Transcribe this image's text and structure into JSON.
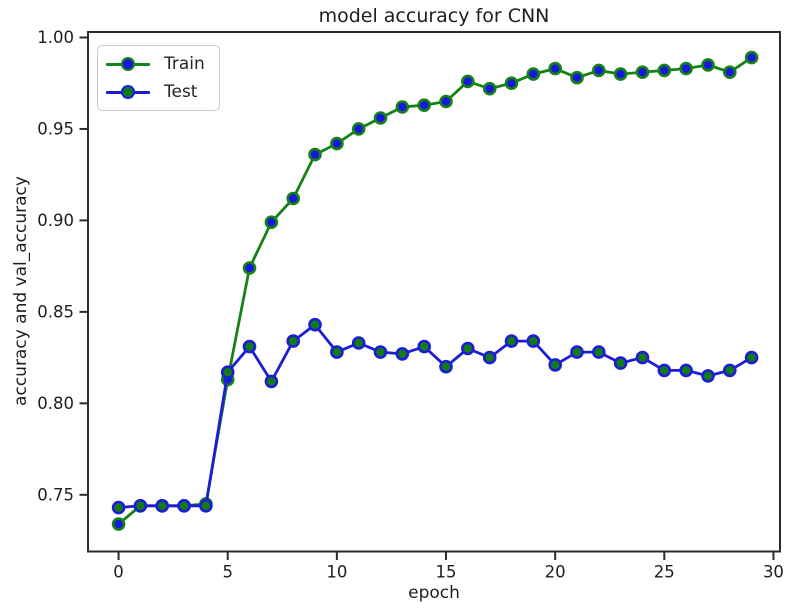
{
  "chart_data": {
    "type": "line",
    "title": "model accuracy for CNN",
    "xlabel": "epoch",
    "ylabel": "accuracy and val_accuracy",
    "x": [
      0,
      1,
      2,
      3,
      4,
      5,
      6,
      7,
      8,
      9,
      10,
      11,
      12,
      13,
      14,
      15,
      16,
      17,
      18,
      19,
      20,
      21,
      22,
      23,
      24,
      25,
      26,
      27,
      28,
      29
    ],
    "series": [
      {
        "name": "Train",
        "line_color": "#168216",
        "marker_fill": "#1717e0",
        "marker_edge": "#168216",
        "values": [
          0.734,
          0.744,
          0.744,
          0.744,
          0.745,
          0.813,
          0.874,
          0.899,
          0.912,
          0.936,
          0.942,
          0.95,
          0.956,
          0.962,
          0.963,
          0.965,
          0.976,
          0.972,
          0.975,
          0.98,
          0.983,
          0.978,
          0.982,
          0.98,
          0.981,
          0.982,
          0.983,
          0.985,
          0.981,
          0.989
        ]
      },
      {
        "name": "Test",
        "line_color": "#1d1dd8",
        "marker_fill": "#127c12",
        "marker_edge": "#1d1dd8",
        "values": [
          0.743,
          0.744,
          0.744,
          0.744,
          0.744,
          0.817,
          0.831,
          0.812,
          0.834,
          0.843,
          0.828,
          0.833,
          0.828,
          0.827,
          0.831,
          0.82,
          0.83,
          0.825,
          0.834,
          0.834,
          0.821,
          0.828,
          0.828,
          0.822,
          0.825,
          0.818,
          0.818,
          0.815,
          0.818,
          0.825
        ]
      }
    ],
    "xticks": [
      0,
      5,
      10,
      15,
      20,
      25,
      30
    ],
    "yticks": [
      0.75,
      0.8,
      0.85,
      0.9,
      0.95,
      1.0
    ],
    "xlim": [
      -1.4,
      30.3
    ],
    "ylim": [
      0.719,
      1.003
    ],
    "grid": false,
    "legend_position": "upper left",
    "axis_color": "#2b2b2b",
    "tick_label_color": "#1e1e1e"
  }
}
